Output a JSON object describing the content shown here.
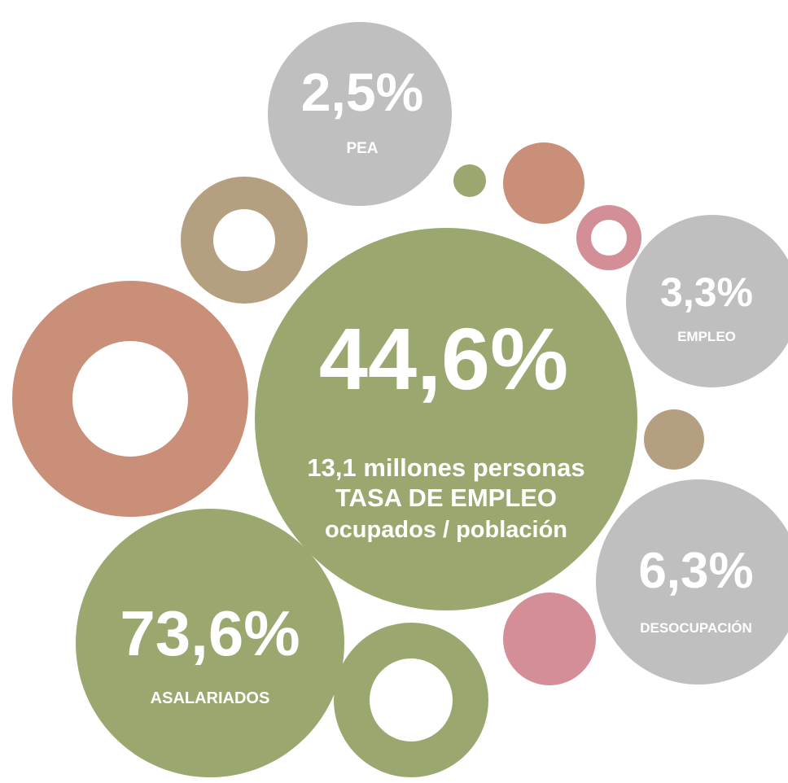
{
  "main": {
    "value": "44,6%",
    "line1": "13,1 millones personas",
    "line2": "TASA DE EMPLEO",
    "line3": "ocupados / población"
  },
  "bubbles": [
    {
      "value": "2,5%",
      "label": "PEA"
    },
    {
      "value": "3,3%",
      "label": "EMPLEO"
    },
    {
      "value": "6,3%",
      "label": "DESOCUPACIÓN"
    },
    {
      "value": "73,6%",
      "label": "ASALARIADOS"
    }
  ]
}
